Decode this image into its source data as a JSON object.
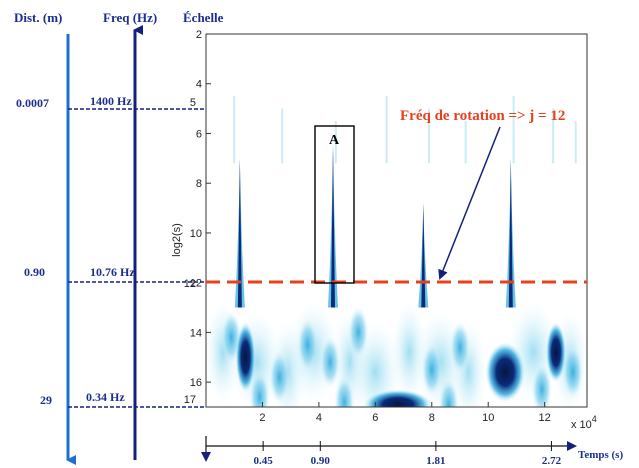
{
  "headers": {
    "dist": "Dist. (m)",
    "freq": "Freq (Hz)",
    "scale": "Échelle"
  },
  "colors": {
    "arrow_blue": "#1e6fd4",
    "arrow_navy": "#15207a",
    "label_blue": "#1a2f8c",
    "red_line": "#e8401c",
    "red_text": "#e8401c",
    "map_light": "#bfe9f5",
    "map_mid": "#2aa8dc",
    "map_dark": "#0a1f5c"
  },
  "reference_rows": [
    {
      "dist": "0.0007",
      "freq": "1400 Hz",
      "scale": "5"
    },
    {
      "dist": "0.90",
      "freq": "10.76 Hz",
      "scale": "12"
    },
    {
      "dist": "29",
      "freq": "0.34 Hz",
      "scale": "17"
    }
  ],
  "annotation": {
    "text": "Fréq de rotation => j = 12",
    "box_label": "A"
  },
  "time_axis": {
    "label": "Temps (s)",
    "ticks": [
      "0.45",
      "0.90",
      "1.81",
      "2.72"
    ],
    "ticks_value": [
      0.45,
      0.9,
      1.81,
      2.72
    ]
  },
  "chart_data": {
    "type": "heatmap",
    "title": "",
    "xlabel": "",
    "ylabel": "log2(s)",
    "x_multiplier": "x 10",
    "x_multiplier_exp": "4",
    "x_ticks": [
      2,
      4,
      6,
      8,
      10,
      12
    ],
    "x_tick_labels": [
      "2",
      "4",
      "6",
      "8",
      "10",
      "12"
    ],
    "y_ticks": [
      2,
      4,
      6,
      8,
      10,
      12,
      14,
      16
    ],
    "y_tick_labels": [
      "2",
      "4",
      "6",
      "8",
      "10",
      "12",
      "14",
      "16"
    ],
    "xlim": [
      0,
      13.5
    ],
    "ylim": [
      2,
      17
    ],
    "y_inverted": true,
    "reference_scale": 12,
    "spikes": [
      {
        "x": 1.2,
        "top": 7.0
      },
      {
        "x": 4.5,
        "top": 6.5
      },
      {
        "x": 7.7,
        "top": 8.8
      },
      {
        "x": 10.8,
        "top": 7.0
      }
    ],
    "dark_blobs": [
      {
        "x": 1.4,
        "y": 15.0,
        "rx": 0.35,
        "ry": 1.4
      },
      {
        "x": 10.6,
        "y": 15.6,
        "rx": 0.7,
        "ry": 1.2
      },
      {
        "x": 6.8,
        "y": 16.9,
        "rx": 1.2,
        "ry": 0.6
      },
      {
        "x": 12.4,
        "y": 14.8,
        "rx": 0.35,
        "ry": 1.2
      }
    ]
  }
}
